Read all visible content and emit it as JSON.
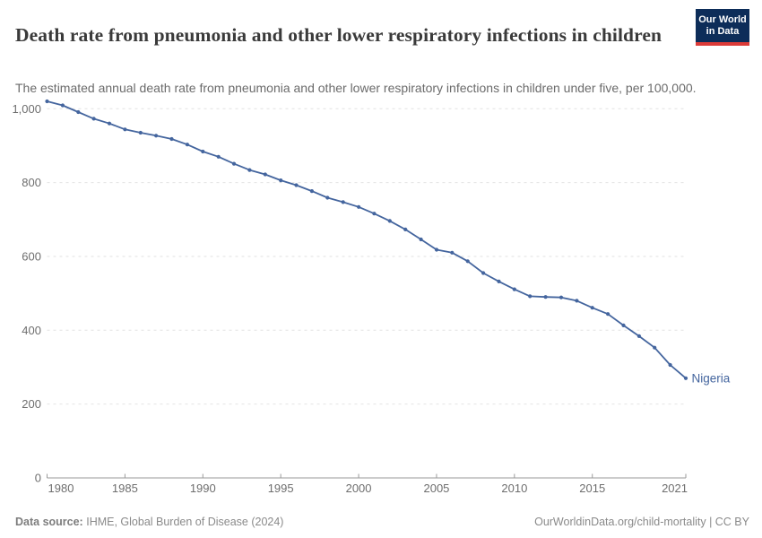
{
  "header": {
    "title": "Death rate from pneumonia and other lower respiratory infections in children",
    "subtitle": "The estimated annual death rate from pneumonia and other lower respiratory infections in children under five, per 100,000."
  },
  "logo": {
    "line1": "Our World",
    "line2": "in Data"
  },
  "colors": {
    "accent_line": "#44659E",
    "logo_bg": "#0d2d59",
    "logo_accent": "#dc3b38"
  },
  "chart_data": {
    "type": "line",
    "title": "Death rate from pneumonia and other lower respiratory infections in children",
    "xlabel": "",
    "ylabel": "",
    "xlim": [
      1980,
      2021
    ],
    "ylim": [
      0,
      1050
    ],
    "x_ticks": [
      1980,
      1985,
      1990,
      1995,
      2000,
      2005,
      2010,
      2015,
      2021
    ],
    "y_ticks": [
      0,
      200,
      400,
      600,
      800,
      1000
    ],
    "grid": "horizontal-dashed",
    "legend_position": "end-of-line",
    "series": [
      {
        "name": "Nigeria",
        "x": [
          1980,
          1981,
          1982,
          1983,
          1984,
          1985,
          1986,
          1987,
          1988,
          1989,
          1990,
          1991,
          1992,
          1993,
          1994,
          1995,
          1996,
          1997,
          1998,
          1999,
          2000,
          2001,
          2002,
          2003,
          2004,
          2005,
          2006,
          2007,
          2008,
          2009,
          2010,
          2011,
          2012,
          2013,
          2014,
          2015,
          2016,
          2017,
          2018,
          2019,
          2020,
          2021
        ],
        "values": [
          1020,
          1009,
          991,
          973,
          960,
          944,
          935,
          927,
          918,
          903,
          884,
          870,
          851,
          834,
          822,
          806,
          793,
          777,
          759,
          747,
          734,
          716,
          696,
          673,
          646,
          618,
          610,
          587,
          555,
          532,
          511,
          492,
          490,
          489,
          480,
          461,
          444,
          413,
          384,
          353,
          306,
          270
        ]
      }
    ]
  },
  "footer": {
    "source_label": "Data source:",
    "source_text": "IHME, Global Burden of Disease (2024)",
    "link_text": "OurWorldinData.org/child-mortality | CC BY"
  }
}
